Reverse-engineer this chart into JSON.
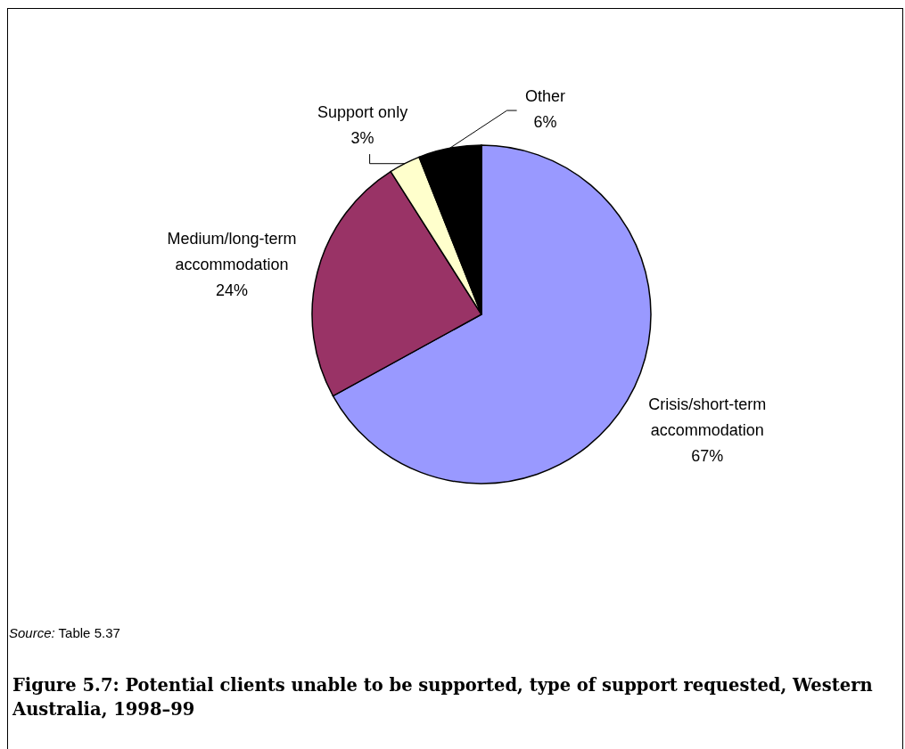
{
  "chart_data": {
    "type": "pie",
    "title": "Figure 5.7: Potential clients unable to be supported, type of support requested, Western Australia, 1998–99",
    "categories": [
      "Crisis/short-term accommodation",
      "Medium/long-term accommodation",
      "Support only",
      "Other"
    ],
    "values": [
      67,
      24,
      3,
      6
    ],
    "value_labels": [
      "67%",
      "24%",
      "3%",
      "6%"
    ],
    "colors": [
      "#9999ff",
      "#993366",
      "#ffffcc",
      "#000000"
    ],
    "annotations": [
      "Source: Table 5.37"
    ]
  }
}
